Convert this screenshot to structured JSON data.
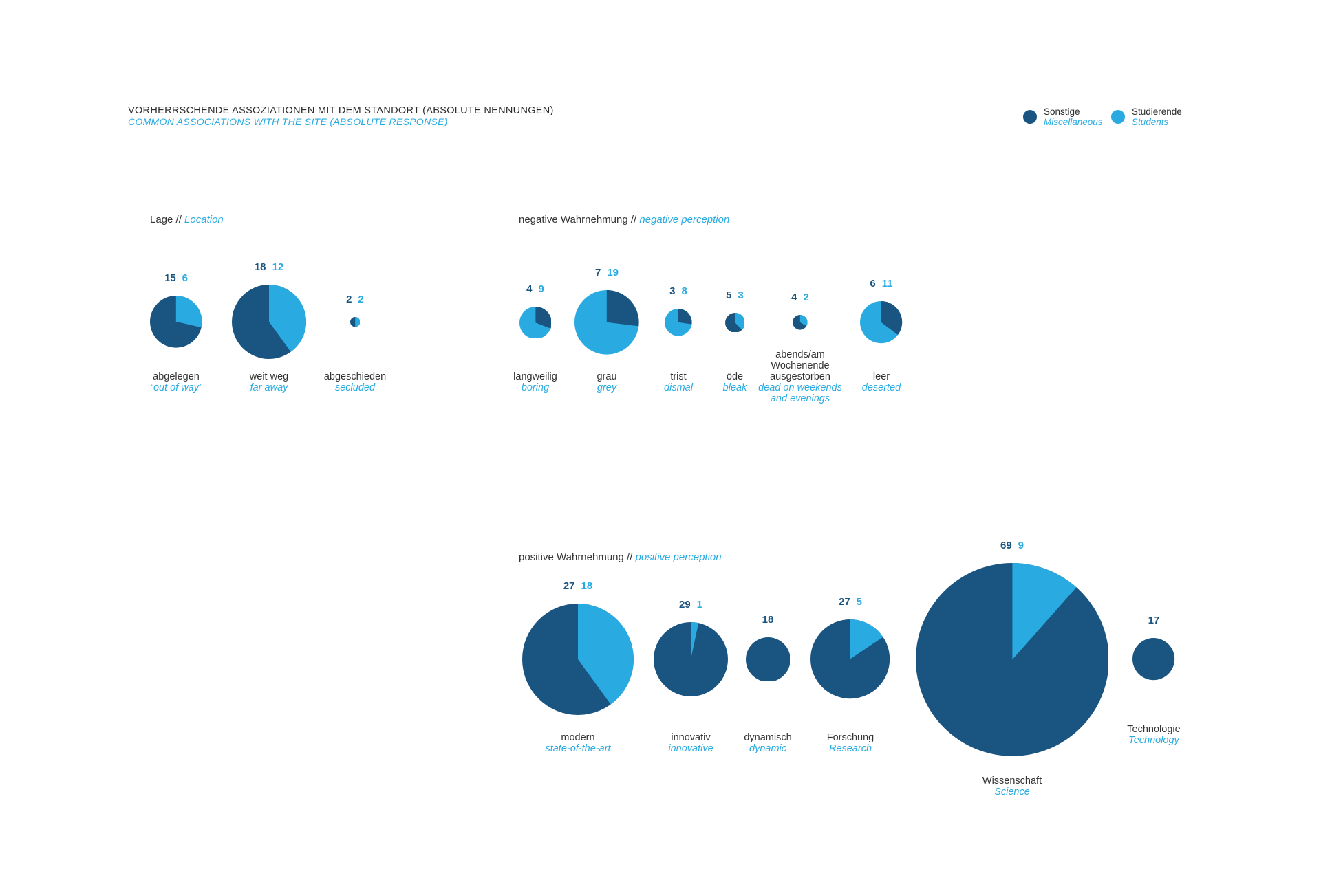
{
  "header": {
    "title_de": "VORHERRSCHENDE ASSOZIATIONEN MIT DEM STANDORT (ABSOLUTE NENNUNGEN)",
    "title_en": "COMMON ASSOCIATIONS WITH THE SITE (ABSOLUTE RESPONSE)",
    "legend": [
      {
        "label_de": "Sonstige",
        "label_en": "Miscellaneous",
        "series": "dark"
      },
      {
        "label_de": "Studierende",
        "label_en": "Students",
        "series": "light"
      }
    ]
  },
  "colors": {
    "dark": "#1a5480",
    "light": "#29abe2"
  },
  "chart_data": {
    "type": "pie",
    "separator": "//",
    "unit": "absolute mentions",
    "size_encoding": "pie radius proportional to total mentions",
    "series_names": {
      "dark": "Sonstige / Miscellaneous",
      "light": "Studierende / Students"
    },
    "groups": [
      {
        "title_de": "Lage",
        "title_en": "Location",
        "items": [
          {
            "de": [
              "abgelegen"
            ],
            "en": [
              "“out of way”"
            ],
            "dark": 15,
            "light": 6
          },
          {
            "de": [
              "weit weg"
            ],
            "en": [
              "far away"
            ],
            "dark": 18,
            "light": 12
          },
          {
            "de": [
              "abgeschieden"
            ],
            "en": [
              "secluded"
            ],
            "dark": 2,
            "light": 2
          }
        ]
      },
      {
        "title_de": "negative Wahrnehmung",
        "title_en": "negative perception",
        "items": [
          {
            "de": [
              "langweilig"
            ],
            "en": [
              "boring"
            ],
            "dark": 4,
            "light": 9
          },
          {
            "de": [
              "grau"
            ],
            "en": [
              "grey"
            ],
            "dark": 7,
            "light": 19
          },
          {
            "de": [
              "trist"
            ],
            "en": [
              "dismal"
            ],
            "dark": 3,
            "light": 8
          },
          {
            "de": [
              "öde"
            ],
            "en": [
              "bleak"
            ],
            "dark": 5,
            "light": 3
          },
          {
            "de": [
              "abends/am",
              "Wochenende",
              "ausgestorben"
            ],
            "en": [
              "dead on weekends",
              "and evenings"
            ],
            "dark": 4,
            "light": 2
          },
          {
            "de": [
              "leer"
            ],
            "en": [
              "deserted"
            ],
            "dark": 6,
            "light": 11
          }
        ]
      },
      {
        "title_de": "positive Wahrnehmung",
        "title_en": "positive perception",
        "items": [
          {
            "de": [
              "modern"
            ],
            "en": [
              "state-of-the-art"
            ],
            "dark": 27,
            "light": 18
          },
          {
            "de": [
              "innovativ"
            ],
            "en": [
              "innovative"
            ],
            "dark": 29,
            "light": 1
          },
          {
            "de": [
              "dynamisch"
            ],
            "en": [
              "dynamic"
            ],
            "dark": 18,
            "light": null
          },
          {
            "de": [
              "Forschung"
            ],
            "en": [
              "Research"
            ],
            "dark": 27,
            "light": 5
          },
          {
            "de": [
              "Wissenschaft"
            ],
            "en": [
              "Science"
            ],
            "dark": 69,
            "light": 9
          },
          {
            "de": [
              "Technologie"
            ],
            "en": [
              "Technology"
            ],
            "dark": 17,
            "light": null
          }
        ]
      }
    ]
  }
}
